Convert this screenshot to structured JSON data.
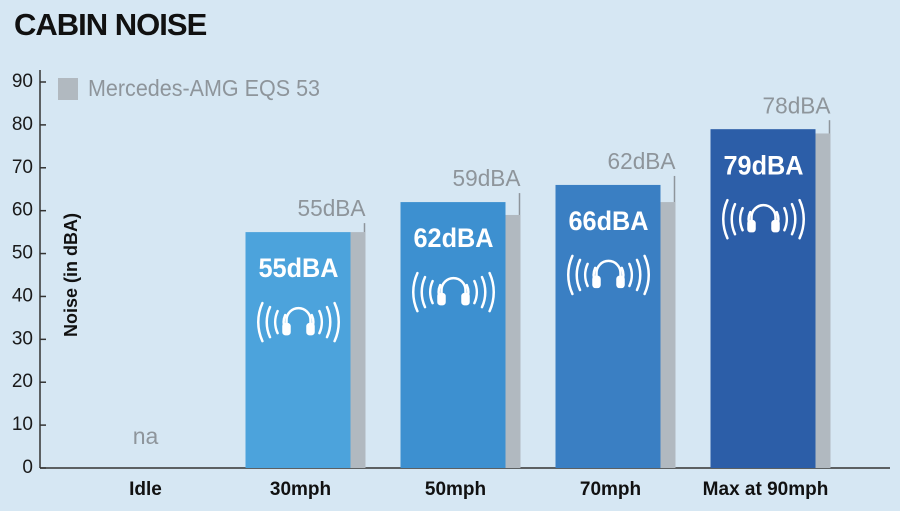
{
  "chart_data": {
    "type": "bar",
    "title": "CABIN NOISE",
    "y_label": "Noise (in dBA)",
    "categories": [
      "Idle",
      "30mph",
      "50mph",
      "70mph",
      "Max at 90mph"
    ],
    "series": [
      {
        "colors": [
          "#4ca3dc",
          "#4ca3dc",
          "#3d90d0",
          "#3a7fc3",
          "#2c5ea8"
        ],
        "values": [
          null,
          55,
          62,
          66,
          79
        ],
        "value_labels": [
          null,
          "55dBA",
          "62dBA",
          "66dBA",
          "79dBA"
        ]
      },
      {
        "name": "Mercedes-AMG EQS 53",
        "color": "#b1b9c0",
        "values": [
          null,
          55,
          59,
          62,
          78
        ],
        "value_labels": [
          "na",
          "55dBA",
          "59dBA",
          "62dBA",
          "78dBA"
        ]
      }
    ],
    "ylim": [
      0,
      90
    ],
    "yticks": [
      0,
      10,
      20,
      30,
      40,
      50,
      60,
      70,
      80,
      90
    ]
  }
}
